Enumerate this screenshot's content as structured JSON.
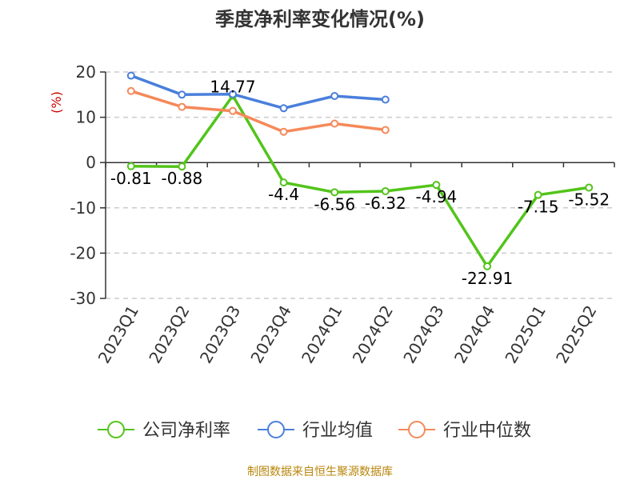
{
  "title": "季度净利率变化情况(%)",
  "source": "制图数据来自恒生聚源数据库",
  "chart_data": {
    "type": "line",
    "title": "季度净利率变化情况(%)",
    "ylabel": "(%)",
    "xlabel": "",
    "categories": [
      "2023Q1",
      "2023Q2",
      "2023Q3",
      "2023Q4",
      "2024Q1",
      "2024Q2",
      "2024Q3",
      "2024Q4",
      "2025Q1",
      "2025Q2"
    ],
    "ylim": [
      -30,
      20
    ],
    "yticks": [
      20,
      10,
      0,
      -10,
      -20,
      -30
    ],
    "grid": true,
    "legend_position": "bottom",
    "series": [
      {
        "name": "公司净利率",
        "color": "#52c41a",
        "values": [
          -0.81,
          -0.88,
          14.77,
          -4.4,
          -6.56,
          -6.32,
          -4.94,
          -22.91,
          -7.15,
          -5.52
        ],
        "labels": [
          "-0.81",
          "-0.88",
          "14.77",
          "-4.4",
          "-6.56",
          "-6.32",
          "-4.94",
          "-22.91",
          "-7.15",
          "-5.52"
        ]
      },
      {
        "name": "行业均值",
        "color": "#4a7fdc",
        "values": [
          19.2,
          15.0,
          15.1,
          12.0,
          14.7,
          13.9,
          null,
          null,
          null,
          null
        ]
      },
      {
        "name": "行业中位数",
        "color": "#f5895a",
        "values": [
          15.8,
          12.3,
          11.4,
          6.8,
          8.6,
          7.2,
          null,
          null,
          null,
          null
        ]
      }
    ]
  }
}
